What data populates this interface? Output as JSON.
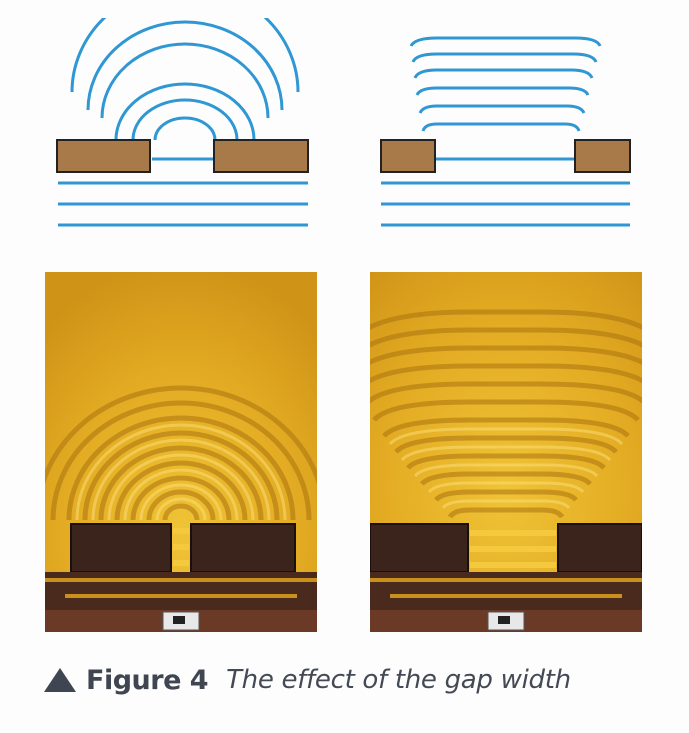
{
  "caption": {
    "label": "Figure 4",
    "title": "The effect of the gap width"
  },
  "panels": [
    {
      "id": "narrow-gap",
      "type": "wavefront-diagram",
      "gap": "narrow",
      "incident_wavefronts": 3,
      "diffracted_wavefronts": 6
    },
    {
      "id": "wide-gap",
      "type": "wavefront-diagram",
      "gap": "wide",
      "incident_wavefronts": 3,
      "diffracted_wavefronts": 6
    },
    {
      "id": "narrow-gap-photo",
      "type": "ripple-tank-photo",
      "gap": "narrow"
    },
    {
      "id": "wide-gap-photo",
      "type": "ripple-tank-photo",
      "gap": "wide"
    }
  ],
  "colors": {
    "wavefront": "#2f97d3",
    "barrier": "#a87a4a",
    "barrier_outline": "#222222",
    "water": "#e3ac24",
    "caption_text": "#3f4652"
  },
  "icons": [
    "triangle-icon"
  ]
}
